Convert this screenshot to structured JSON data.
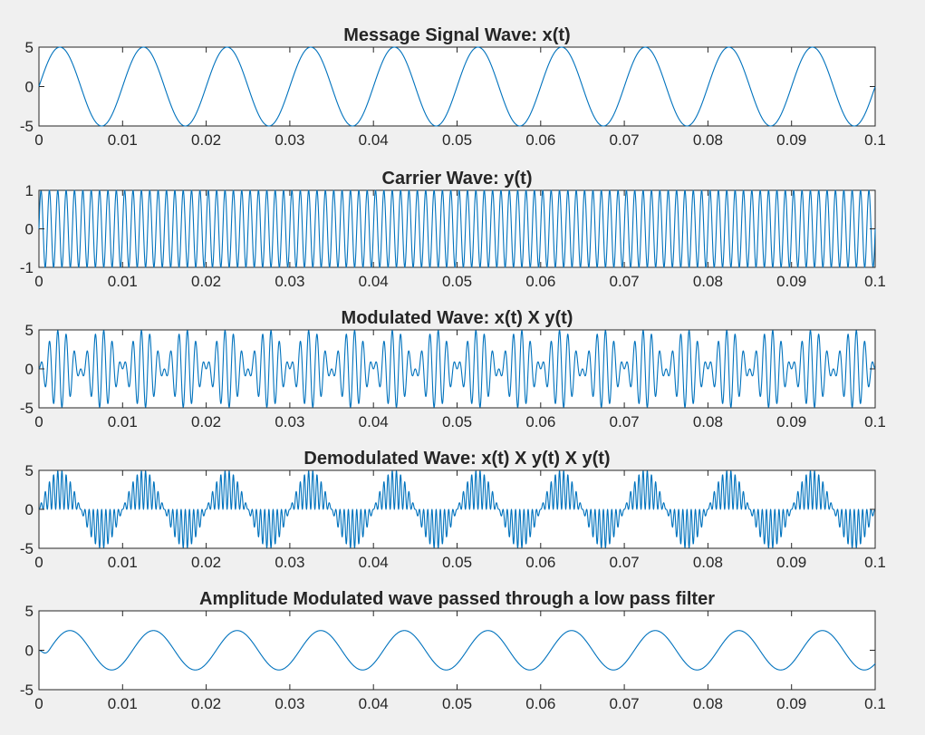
{
  "figure": {
    "background": "#f0f0f0",
    "axes_background": "#ffffff",
    "line_color": "#0072bd",
    "axis_color": "#262626"
  },
  "chart_data": [
    {
      "type": "line",
      "title": "Message Signal Wave: x(t)",
      "xlim": [
        0,
        0.1
      ],
      "ylim": [
        -5,
        5
      ],
      "xticks": [
        0,
        0.01,
        0.02,
        0.03,
        0.04,
        0.05,
        0.06,
        0.07,
        0.08,
        0.09,
        0.1
      ],
      "xtick_labels": [
        "0",
        "0.01",
        "0.02",
        "0.03",
        "0.04",
        "0.05",
        "0.06",
        "0.07",
        "0.08",
        "0.09",
        "0.1"
      ],
      "yticks": [
        -5,
        0,
        5
      ],
      "ytick_labels": [
        "-5",
        "0",
        "5"
      ],
      "grid": false,
      "series": [
        {
          "function": "sine",
          "amplitude": 5,
          "frequency_hz": 100,
          "phase": 0
        }
      ]
    },
    {
      "type": "line",
      "title": "Carrier Wave: y(t)",
      "xlim": [
        0,
        0.1
      ],
      "ylim": [
        -1,
        1
      ],
      "xticks": [
        0,
        0.01,
        0.02,
        0.03,
        0.04,
        0.05,
        0.06,
        0.07,
        0.08,
        0.09,
        0.1
      ],
      "xtick_labels": [
        "0",
        "0.01",
        "0.02",
        "0.03",
        "0.04",
        "0.05",
        "0.06",
        "0.07",
        "0.08",
        "0.09",
        "0.1"
      ],
      "yticks": [
        -1,
        0,
        1
      ],
      "ytick_labels": [
        "-1",
        "0",
        "1"
      ],
      "grid": false,
      "series": [
        {
          "function": "sine",
          "amplitude": 1,
          "frequency_hz": 1000,
          "phase": 0
        }
      ]
    },
    {
      "type": "line",
      "title": "Modulated Wave: x(t) X y(t)",
      "xlim": [
        0,
        0.1
      ],
      "ylim": [
        -5,
        5
      ],
      "xticks": [
        0,
        0.01,
        0.02,
        0.03,
        0.04,
        0.05,
        0.06,
        0.07,
        0.08,
        0.09,
        0.1
      ],
      "xtick_labels": [
        "0",
        "0.01",
        "0.02",
        "0.03",
        "0.04",
        "0.05",
        "0.06",
        "0.07",
        "0.08",
        "0.09",
        "0.1"
      ],
      "yticks": [
        -5,
        0,
        5
      ],
      "ytick_labels": [
        "-5",
        "0",
        "5"
      ],
      "grid": false,
      "series": [
        {
          "function": "product",
          "message_amplitude": 5,
          "message_frequency_hz": 100,
          "carrier_frequency_hz": 1000
        }
      ]
    },
    {
      "type": "line",
      "title": "Demodulated Wave: x(t) X y(t) X y(t)",
      "xlim": [
        0,
        0.1
      ],
      "ylim": [
        -5,
        5
      ],
      "xticks": [
        0,
        0.01,
        0.02,
        0.03,
        0.04,
        0.05,
        0.06,
        0.07,
        0.08,
        0.09,
        0.1
      ],
      "xtick_labels": [
        "0",
        "0.01",
        "0.02",
        "0.03",
        "0.04",
        "0.05",
        "0.06",
        "0.07",
        "0.08",
        "0.09",
        "0.1"
      ],
      "yticks": [
        -5,
        0,
        5
      ],
      "ytick_labels": [
        "-5",
        "0",
        "5"
      ],
      "grid": false,
      "series": [
        {
          "function": "product_squared_carrier",
          "message_amplitude": 5,
          "message_frequency_hz": 100,
          "carrier_frequency_hz": 1000
        }
      ]
    },
    {
      "type": "line",
      "title": "Amplitude Modulated wave passed through a low pass filter",
      "xlim": [
        0,
        0.1
      ],
      "ylim": [
        -5,
        5
      ],
      "xticks": [
        0,
        0.01,
        0.02,
        0.03,
        0.04,
        0.05,
        0.06,
        0.07,
        0.08,
        0.09,
        0.1
      ],
      "xtick_labels": [
        "0",
        "0.01",
        "0.02",
        "0.03",
        "0.04",
        "0.05",
        "0.06",
        "0.07",
        "0.08",
        "0.09",
        "0.1"
      ],
      "yticks": [
        -5,
        0,
        5
      ],
      "ytick_labels": [
        "-5",
        "0",
        "5"
      ],
      "grid": false,
      "series": [
        {
          "function": "filtered_sine",
          "amplitude": 2.5,
          "frequency_hz": 100,
          "delay_s": 0.0012,
          "startup_s": 0.0015
        }
      ]
    }
  ]
}
